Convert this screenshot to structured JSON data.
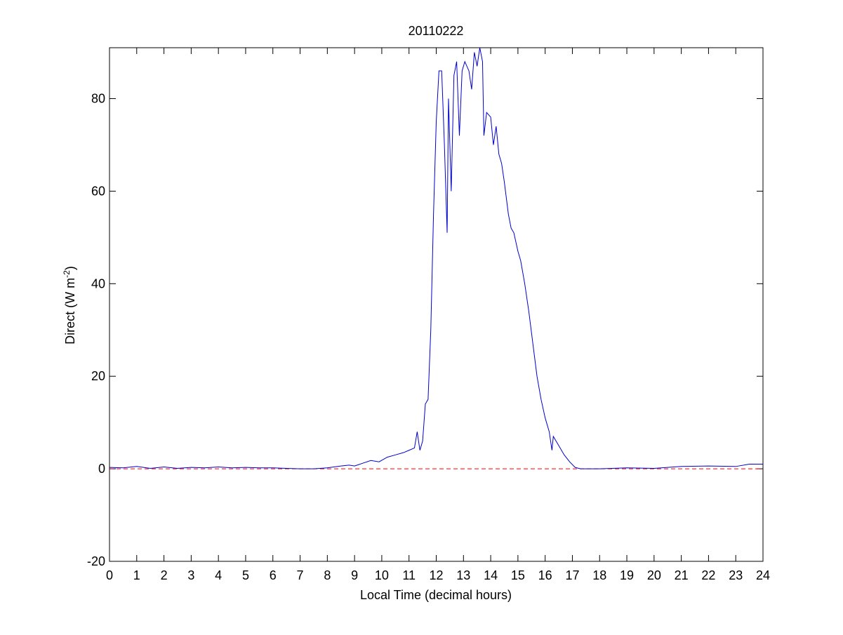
{
  "chart_data": {
    "type": "line",
    "title": "20110222",
    "xlabel": "Local Time (decimal hours)",
    "ylabel": [
      "Direct (W m",
      "-2",
      ")"
    ],
    "xlim": [
      0,
      24
    ],
    "ylim": [
      -20,
      91
    ],
    "xticks": [
      0,
      1,
      2,
      3,
      4,
      5,
      6,
      7,
      8,
      9,
      10,
      11,
      12,
      13,
      14,
      15,
      16,
      17,
      18,
      19,
      20,
      21,
      22,
      23,
      24
    ],
    "yticks": [
      -20,
      0,
      20,
      40,
      60,
      80
    ],
    "grid": false,
    "reference_line": {
      "value": 0,
      "color": "#ff0000",
      "dashed": true
    },
    "series": [
      {
        "color": "#0000cc",
        "x": [
          0,
          0.5,
          1,
          1.5,
          2,
          2.5,
          3,
          3.5,
          4,
          4.5,
          5,
          5.5,
          6,
          6.5,
          7,
          7.5,
          8,
          8.5,
          8.8,
          9,
          9.3,
          9.6,
          9.9,
          10.2,
          10.5,
          10.8,
          11,
          11.2,
          11.3,
          11.4,
          11.5,
          11.6,
          11.7,
          11.8,
          11.9,
          12,
          12.1,
          12.2,
          12.3,
          12.4,
          12.45,
          12.55,
          12.65,
          12.75,
          12.85,
          12.95,
          13.05,
          13.2,
          13.3,
          13.4,
          13.5,
          13.6,
          13.7,
          13.75,
          13.85,
          14,
          14.1,
          14.2,
          14.3,
          14.4,
          14.5,
          14.65,
          14.75,
          14.85,
          15,
          15.1,
          15.25,
          15.4,
          15.55,
          15.7,
          15.85,
          16,
          16.15,
          16.25,
          16.3,
          16.5,
          16.7,
          16.9,
          17.1,
          17.3,
          18,
          19,
          20,
          20.5,
          21,
          22,
          23,
          23.5,
          24
        ],
        "values": [
          0.3,
          0.2,
          0.5,
          0.1,
          0.4,
          0.1,
          0.3,
          0.2,
          0.4,
          0.2,
          0.3,
          0.2,
          0.2,
          0.1,
          0,
          0,
          0.2,
          0.6,
          0.8,
          0.6,
          1.2,
          1.8,
          1.5,
          2.5,
          3,
          3.5,
          4,
          4.5,
          8,
          4,
          6,
          14,
          15,
          30,
          55,
          75,
          86,
          86,
          70,
          51,
          80,
          60,
          85,
          88,
          72,
          86,
          88,
          86,
          82,
          90,
          87,
          91,
          88,
          72,
          77,
          76,
          70,
          74,
          68,
          66,
          62,
          55,
          52,
          51,
          47,
          45,
          40,
          34,
          27,
          20,
          15,
          11,
          8,
          4,
          7,
          5,
          3,
          1.5,
          0.3,
          0,
          0,
          0.2,
          0.1,
          0.3,
          0.5,
          0.6,
          0.5,
          1,
          1
        ]
      }
    ]
  }
}
